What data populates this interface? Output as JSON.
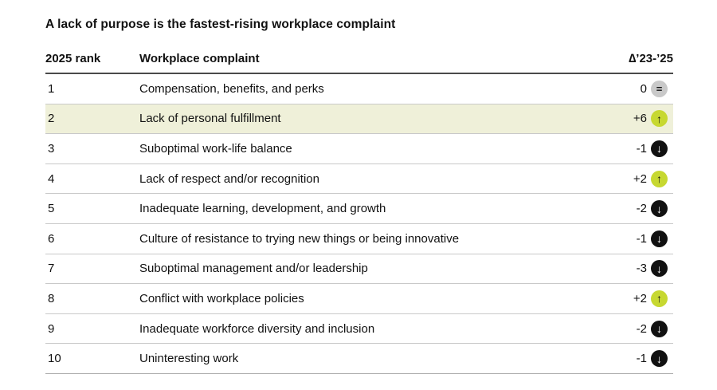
{
  "chart_data": {
    "type": "table",
    "title": "A lack of purpose is the fastest-rising workplace complaint",
    "columns": [
      "2025 rank",
      "Workplace complaint",
      "∆’23-’25"
    ],
    "rows": [
      {
        "rank": "1",
        "complaint": "Compensation, benefits, and perks",
        "delta": "0",
        "direction": "same",
        "highlight": false
      },
      {
        "rank": "2",
        "complaint": "Lack of personal fulfillment",
        "delta": "+6",
        "direction": "up",
        "highlight": true
      },
      {
        "rank": "3",
        "complaint": "Suboptimal work-life balance",
        "delta": "-1",
        "direction": "down",
        "highlight": false
      },
      {
        "rank": "4",
        "complaint": "Lack of respect and/or recognition",
        "delta": "+2",
        "direction": "up",
        "highlight": false
      },
      {
        "rank": "5",
        "complaint": "Inadequate learning, development, and growth",
        "delta": "-2",
        "direction": "down",
        "highlight": false
      },
      {
        "rank": "6",
        "complaint": "Culture of resistance to trying new things or being innovative",
        "delta": "-1",
        "direction": "down",
        "highlight": false
      },
      {
        "rank": "7",
        "complaint": "Suboptimal management and/or leadership",
        "delta": "-3",
        "direction": "down",
        "highlight": false
      },
      {
        "rank": "8",
        "complaint": "Conflict with workplace policies",
        "delta": "+2",
        "direction": "up",
        "highlight": false
      },
      {
        "rank": "9",
        "complaint": "Inadequate workforce diversity and inclusion",
        "delta": "-2",
        "direction": "down",
        "highlight": false
      },
      {
        "rank": "10",
        "complaint": "Uninteresting work",
        "delta": "-1",
        "direction": "down",
        "highlight": false
      }
    ],
    "highlighted_rank": "2",
    "legend_position": "none",
    "grid": "horizontal-row-separators"
  },
  "icons": {
    "up": {
      "name": "up-arrow-icon",
      "glyph": "↑"
    },
    "down": {
      "name": "down-arrow-icon",
      "glyph": "↓"
    },
    "same": {
      "name": "equal-icon",
      "glyph": "="
    }
  },
  "colors": {
    "up_circle": "#c7d831",
    "down_circle": "#111111",
    "same_circle": "#c9c9c9",
    "highlight_row": "#eff0d9",
    "header_border": "#4a4a4a",
    "row_border": "#c9c9c9",
    "last_row_border": "#ababab",
    "text": "#111111",
    "background": "#ffffff"
  }
}
